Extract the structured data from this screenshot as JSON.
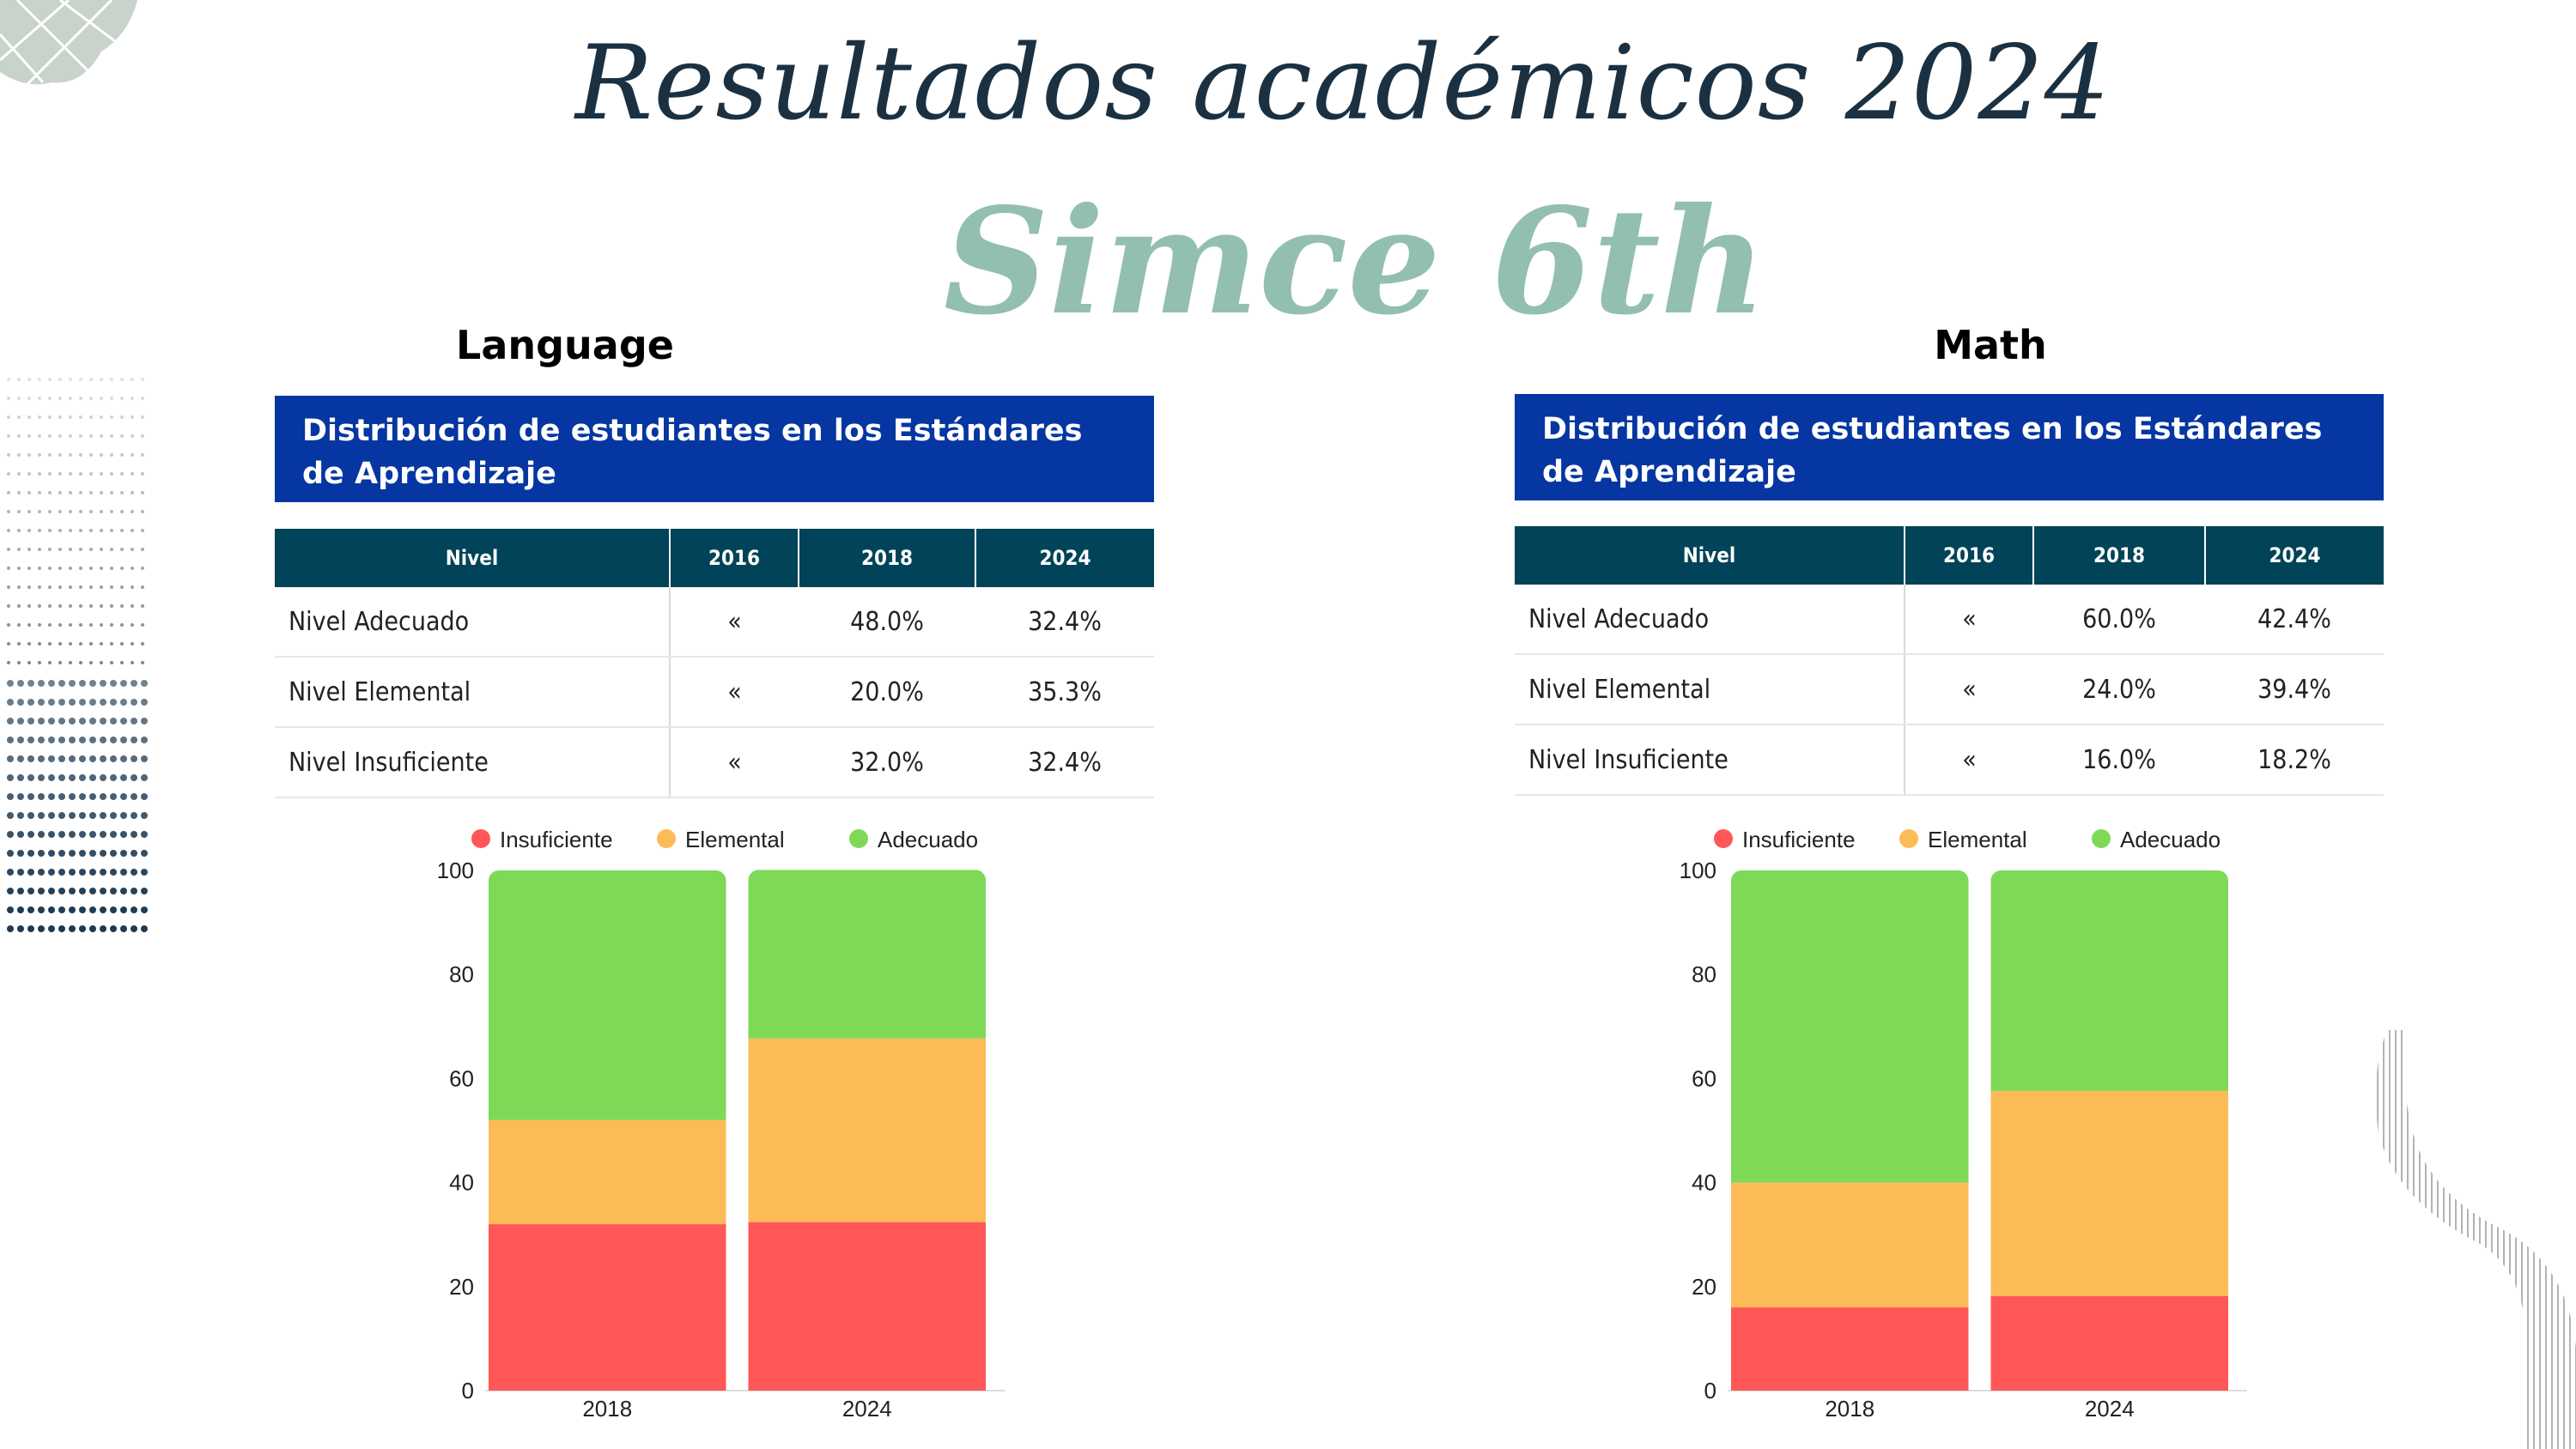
{
  "page": {
    "title": "Resultados académicos 2024",
    "subtitle": "Simce 6th",
    "colors": {
      "title": "#1b3142",
      "subtitle": "#93bfb0",
      "header_band": "#0536a1",
      "table_header": "#014358",
      "insuficiente": "#ff5757",
      "elemental": "#fdbb57",
      "adecuado": "#7ed957"
    }
  },
  "panels": [
    {
      "section_title": "Language",
      "header": "Distribución de estudiantes en los Estándares de Aprendizaje",
      "columns": [
        "Nivel",
        "2016",
        "2018",
        "2024"
      ],
      "rows": [
        [
          "Nivel Adecuado",
          "«",
          "48.0%",
          "32.4%"
        ],
        [
          "Nivel Elemental",
          "«",
          "20.0%",
          "35.3%"
        ],
        [
          "Nivel Insuficiente",
          "«",
          "32.0%",
          "32.4%"
        ]
      ]
    },
    {
      "section_title": "Math",
      "header": "Distribución de estudiantes en los Estándares de Aprendizaje",
      "columns": [
        "Nivel",
        "2016",
        "2018",
        "2024"
      ],
      "rows": [
        [
          "Nivel Adecuado",
          "«",
          "60.0%",
          "42.4%"
        ],
        [
          "Nivel Elemental",
          "«",
          "24.0%",
          "39.4%"
        ],
        [
          "Nivel Insuficiente",
          "«",
          "16.0%",
          "18.2%"
        ]
      ]
    }
  ],
  "chart_data": [
    {
      "type": "bar",
      "stacked": true,
      "categories": [
        "2018",
        "2024"
      ],
      "series": [
        {
          "name": "Insuficiente",
          "color": "#ff5757",
          "values": [
            32.0,
            32.4
          ]
        },
        {
          "name": "Elemental",
          "color": "#fdbb57",
          "values": [
            20.0,
            35.3
          ]
        },
        {
          "name": "Adecuado",
          "color": "#7ed957",
          "values": [
            48.0,
            32.4
          ]
        }
      ],
      "yticks": [
        "0",
        "20",
        "40",
        "60",
        "80",
        "100"
      ],
      "ylim": [
        0,
        100
      ],
      "legend": "top",
      "grid": false
    },
    {
      "type": "bar",
      "stacked": true,
      "categories": [
        "2018",
        "2024"
      ],
      "series": [
        {
          "name": "Insuficiente",
          "color": "#ff5757",
          "values": [
            16.0,
            18.2
          ]
        },
        {
          "name": "Elemental",
          "color": "#fdbb57",
          "values": [
            24.0,
            39.4
          ]
        },
        {
          "name": "Adecuado",
          "color": "#7ed957",
          "values": [
            60.0,
            42.4
          ]
        }
      ],
      "yticks": [
        "0",
        "20",
        "40",
        "60",
        "80",
        "100"
      ],
      "ylim": [
        0,
        100
      ],
      "legend": "top",
      "grid": false
    }
  ]
}
